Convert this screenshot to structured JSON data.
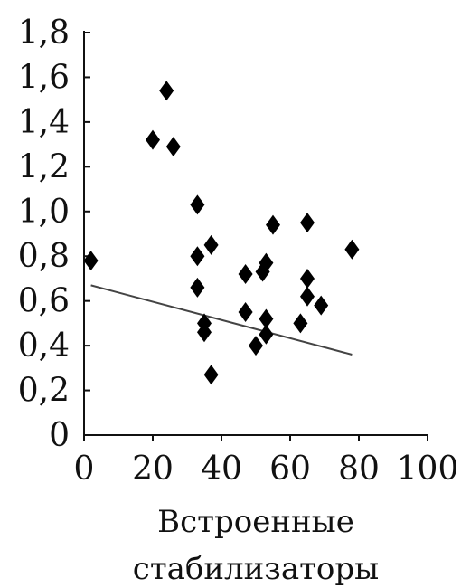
{
  "chart_data": {
    "type": "scatter",
    "title": "",
    "xlabel": [
      "Встроенные",
      "стабилизаторы"
    ],
    "ylabel": "",
    "xlim": [
      0,
      100
    ],
    "ylim": [
      0,
      1.8
    ],
    "x_ticks": [
      0,
      20,
      40,
      60,
      80,
      100
    ],
    "x_tick_labels": [
      "0",
      "20",
      "40",
      "60",
      "80",
      "100"
    ],
    "y_ticks": [
      0,
      0.2,
      0.4,
      0.6,
      0.8,
      1.0,
      1.2,
      1.4,
      1.6,
      1.8
    ],
    "y_tick_labels": [
      "0",
      "0,2",
      "0,4",
      "0,6",
      "0,8",
      "1,0",
      "1,2",
      "1,4",
      "1,6",
      "1,8"
    ],
    "grid": false,
    "legend": "none",
    "marker": "diamond",
    "marker_color": "#000000",
    "points": [
      {
        "x": 2,
        "y": 0.78
      },
      {
        "x": 20,
        "y": 1.32
      },
      {
        "x": 24,
        "y": 1.54
      },
      {
        "x": 26,
        "y": 1.29
      },
      {
        "x": 33,
        "y": 0.66
      },
      {
        "x": 33,
        "y": 1.03
      },
      {
        "x": 33,
        "y": 0.8
      },
      {
        "x": 35,
        "y": 0.5
      },
      {
        "x": 35,
        "y": 0.46
      },
      {
        "x": 37,
        "y": 0.85
      },
      {
        "x": 37,
        "y": 0.27
      },
      {
        "x": 47,
        "y": 0.72
      },
      {
        "x": 47,
        "y": 0.55
      },
      {
        "x": 50,
        "y": 0.4
      },
      {
        "x": 52,
        "y": 0.73
      },
      {
        "x": 53,
        "y": 0.77
      },
      {
        "x": 53,
        "y": 0.52
      },
      {
        "x": 53,
        "y": 0.45
      },
      {
        "x": 55,
        "y": 0.94
      },
      {
        "x": 63,
        "y": 0.5
      },
      {
        "x": 65,
        "y": 0.95
      },
      {
        "x": 65,
        "y": 0.7
      },
      {
        "x": 65,
        "y": 0.62
      },
      {
        "x": 69,
        "y": 0.58
      },
      {
        "x": 78,
        "y": 0.83
      }
    ],
    "trendline": {
      "x": [
        2,
        78
      ],
      "y": [
        0.67,
        0.36
      ],
      "color": "#444444"
    }
  }
}
